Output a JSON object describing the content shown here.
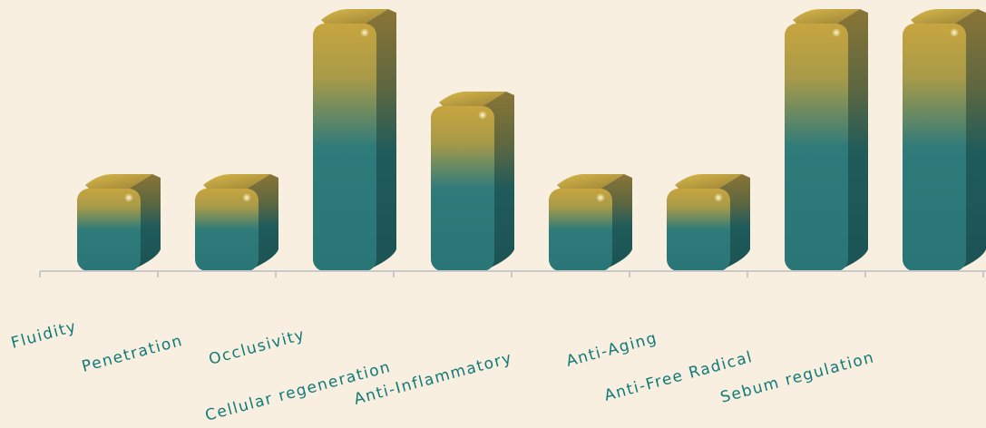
{
  "colors": {
    "background": "#f8efe0",
    "bar_top": "#c7a53f",
    "bar_body": "#2c7b7c",
    "bar_side": "#1e5a5a",
    "axis": "#c9c9c9",
    "label": "#0f7a77"
  },
  "chart_data": {
    "type": "bar",
    "categories": [
      "Fluidity",
      "Penetration",
      "Occlusivity",
      "Cellular regeneration",
      "Anti-Inflammatory",
      "Anti-Aging",
      "Anti-Free Radical",
      "Sebum regulation"
    ],
    "values": [
      1,
      1,
      3,
      2,
      1,
      1,
      3,
      3
    ],
    "ylim": [
      0,
      3
    ],
    "grid": false,
    "legend": "none",
    "style": "3d-cylinder"
  }
}
